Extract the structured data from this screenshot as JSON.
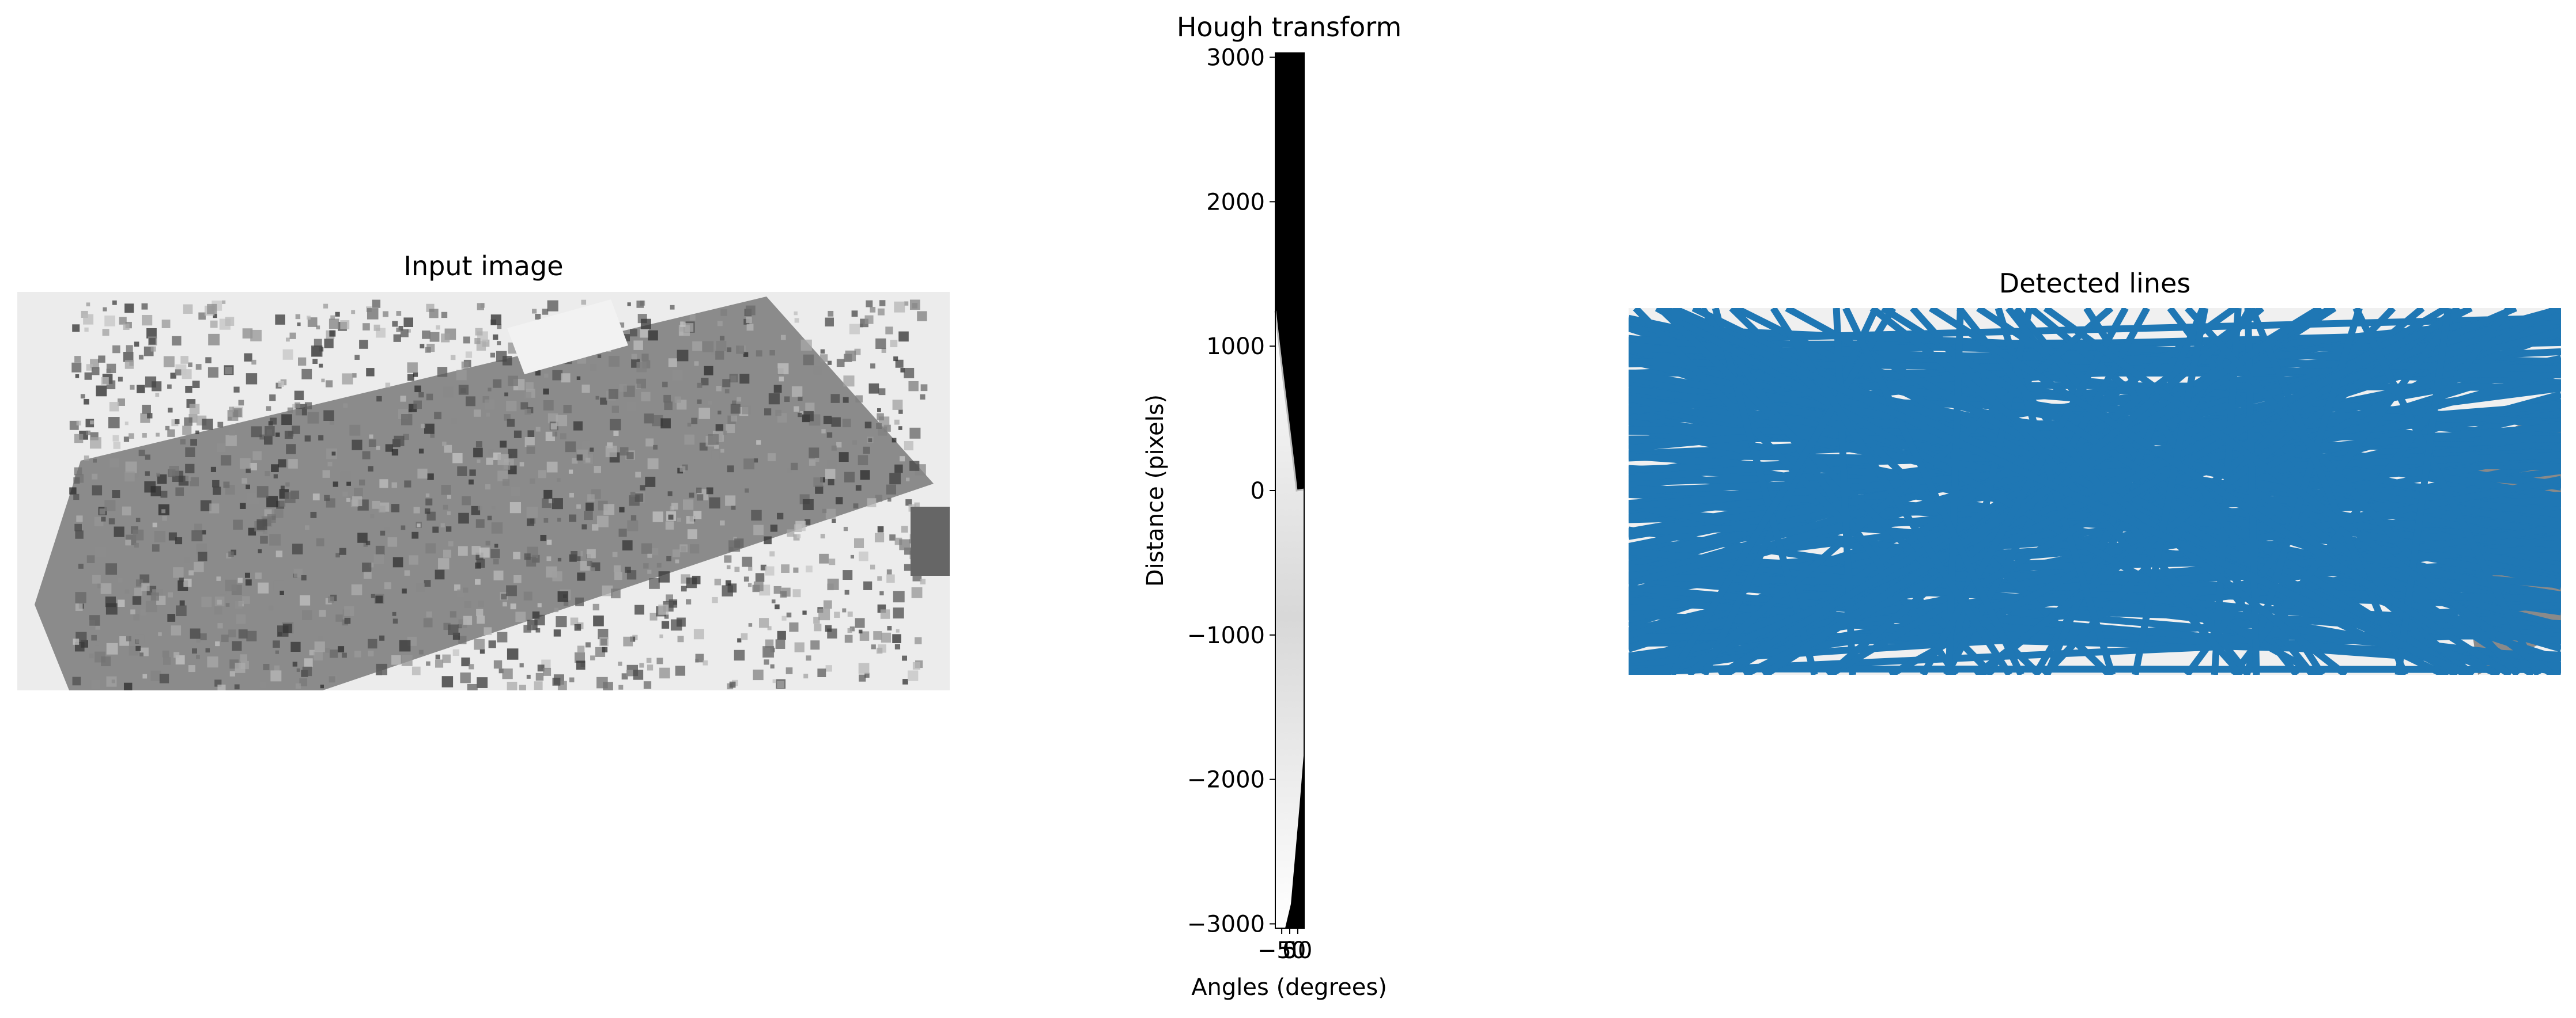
{
  "chart_data": [
    {
      "type": "image",
      "title": "Input image",
      "description": "grayscale aerial image of a city grid"
    },
    {
      "type": "heatmap",
      "title": "Hough transform",
      "xlabel": "Angles (degrees)",
      "ylabel": "Distance (pixels)",
      "xlim": [
        -90,
        90
      ],
      "ylim": [
        3030,
        -3030
      ],
      "xticks": [
        -50,
        0,
        50
      ],
      "xtick_labels": [
        "−50",
        "0",
        "50"
      ],
      "yticks": [
        -3000,
        -2000,
        -1000,
        0,
        1000,
        2000,
        3000
      ],
      "ytick_labels": [
        "−3000",
        "−2000",
        "−1000",
        "0",
        "1000",
        "2000",
        "3000"
      ],
      "colormap": "gray"
    },
    {
      "type": "line",
      "title": "Detected lines",
      "line_color": "#1f77b4",
      "note": "dense overlay of detected Hough lines on input image"
    }
  ]
}
